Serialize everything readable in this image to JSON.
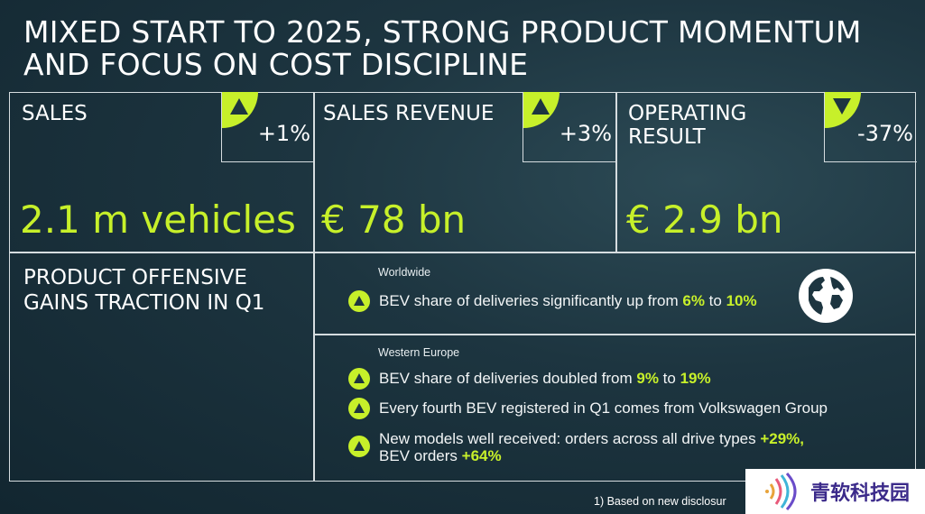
{
  "title": "MIXED START TO 2025, STRONG PRODUCT MOMENTUM AND FOCUS ON COST DISCIPLINE",
  "kpis": [
    {
      "label": "SALES",
      "delta": "+1%",
      "direction": "up",
      "value": "2.1 m vehicles"
    },
    {
      "label": "SALES REVENUE",
      "delta": "+3%",
      "direction": "up",
      "value": "€ 78 bn"
    },
    {
      "label": "OPERATING RESULT",
      "delta": "-37%",
      "direction": "down",
      "value": "€ 2.9 bn"
    }
  ],
  "offensive": {
    "title": "PRODUCT OFFENSIVE GAINS TRACTION IN Q1",
    "worldwide": {
      "region": "Worldwide",
      "bullets": [
        {
          "pre": "BEV share of deliveries significantly up from ",
          "h1": "6%",
          "mid": " to ",
          "h2": "10%"
        }
      ]
    },
    "western_europe": {
      "region": "Western Europe",
      "bullet1": {
        "pre": "BEV share of deliveries doubled from ",
        "h1": "9%",
        "mid": " to ",
        "h2": "19%"
      },
      "bullet2": {
        "text": "Every fourth BEV registered in Q1 comes from Volkswagen Group"
      },
      "bullet3": {
        "pre": "New models well received: orders across all drive types ",
        "h1": "+29%,",
        "line2": "BEV orders ",
        "h2": "+64%"
      }
    }
  },
  "footnote": "1)  Based on new disclosur",
  "watermark": {
    "text": "青软科技园",
    "icon": "signal-waves-icon"
  },
  "colors": {
    "accent": "#c7f02a",
    "background": "#1d3540",
    "line": "#d6dde0"
  }
}
